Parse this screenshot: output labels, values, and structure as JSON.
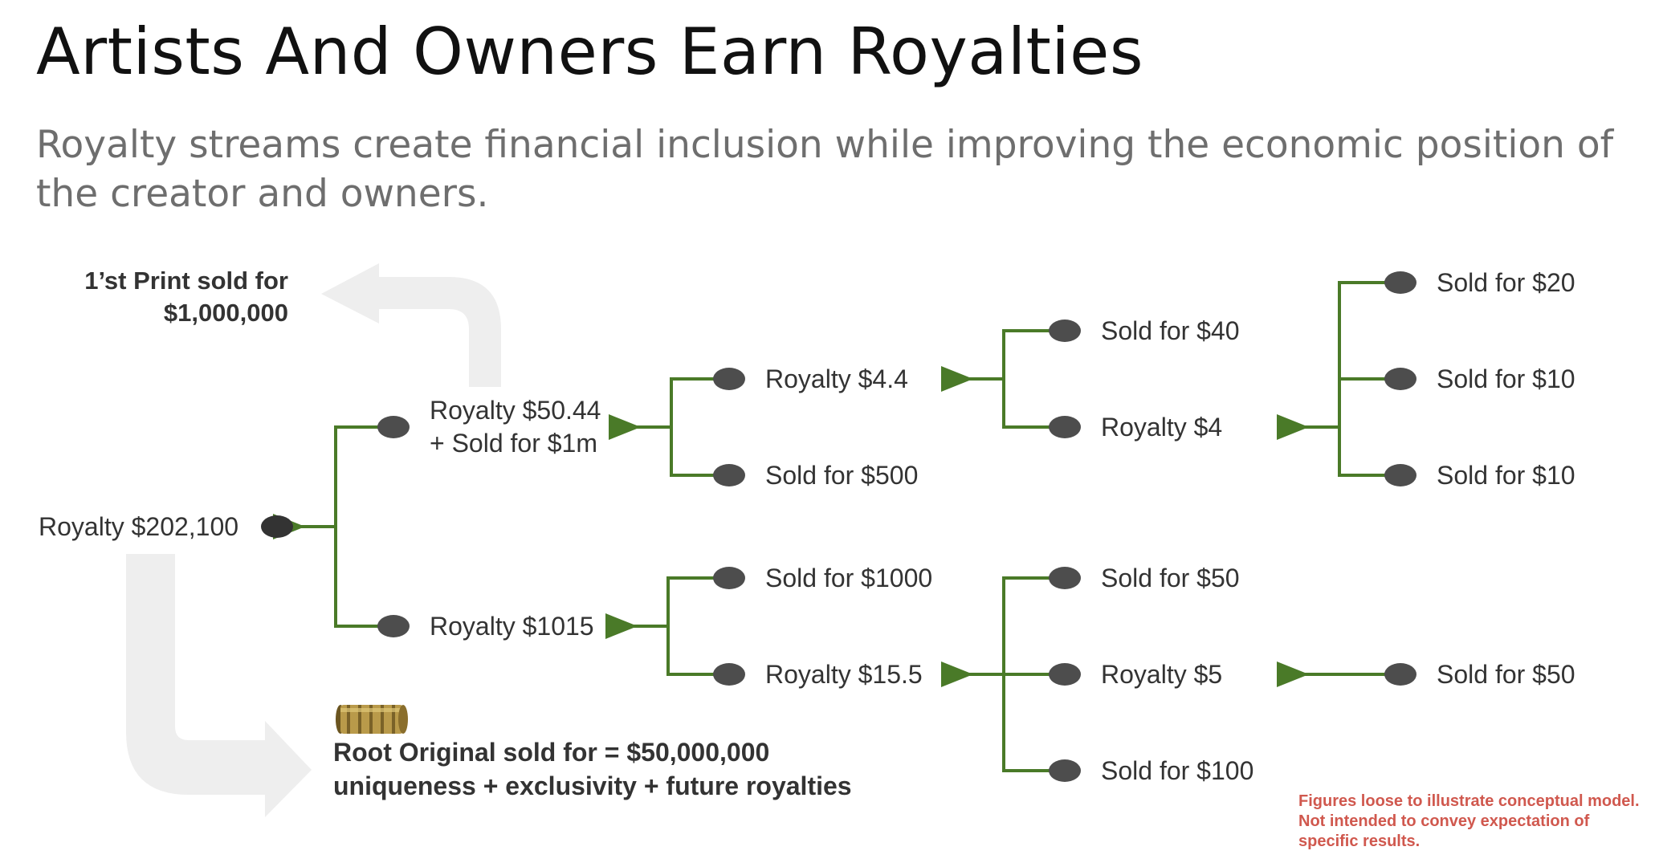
{
  "slide": {
    "title": "Artists And Owners Earn Royalties",
    "subtitle": "Royalty streams create financial inclusion while improving the economic position of the creator and owners."
  },
  "diagram": {
    "print_line1": "1’st Print sold for",
    "print_line2": "$1,000,000",
    "root_line1": "Root Original sold for = $50,000,000",
    "root_line2": "uniqueness + exclusivity + future royalties",
    "root_icon": "cryptex-icon",
    "nodes": {
      "royalty_root": "Royalty $202,100",
      "royalty_50_line1": "Royalty $50.44",
      "royalty_50_line2": "+ Sold for $1m",
      "royalty_1015": "Royalty $1015",
      "royalty_4_4": "Royalty $4.4",
      "sold_500": "Sold for $500",
      "sold_1000": "Sold for $1000",
      "royalty_15_5": "Royalty $15.5",
      "sold_40": "Sold for $40",
      "royalty_4": "Royalty $4",
      "sold_50_a": "Sold for $50",
      "royalty_5": "Royalty $5",
      "sold_100": "Sold for $100",
      "sold_20": "Sold for $20",
      "sold_10_a": "Sold for $10",
      "sold_10_b": "Sold for $10",
      "sold_50_b": "Sold for $50"
    },
    "disclaimer_line1": "Figures loose to illustrate conceptual model.",
    "disclaimer_line2": "Not intended to convey expectation of",
    "disclaimer_line3": "specific results."
  },
  "colors": {
    "connector": "#4a7a28",
    "node": "#4d4d4d",
    "flow_arrow": "#eeeeee",
    "disclaimer": "#d0584e"
  }
}
